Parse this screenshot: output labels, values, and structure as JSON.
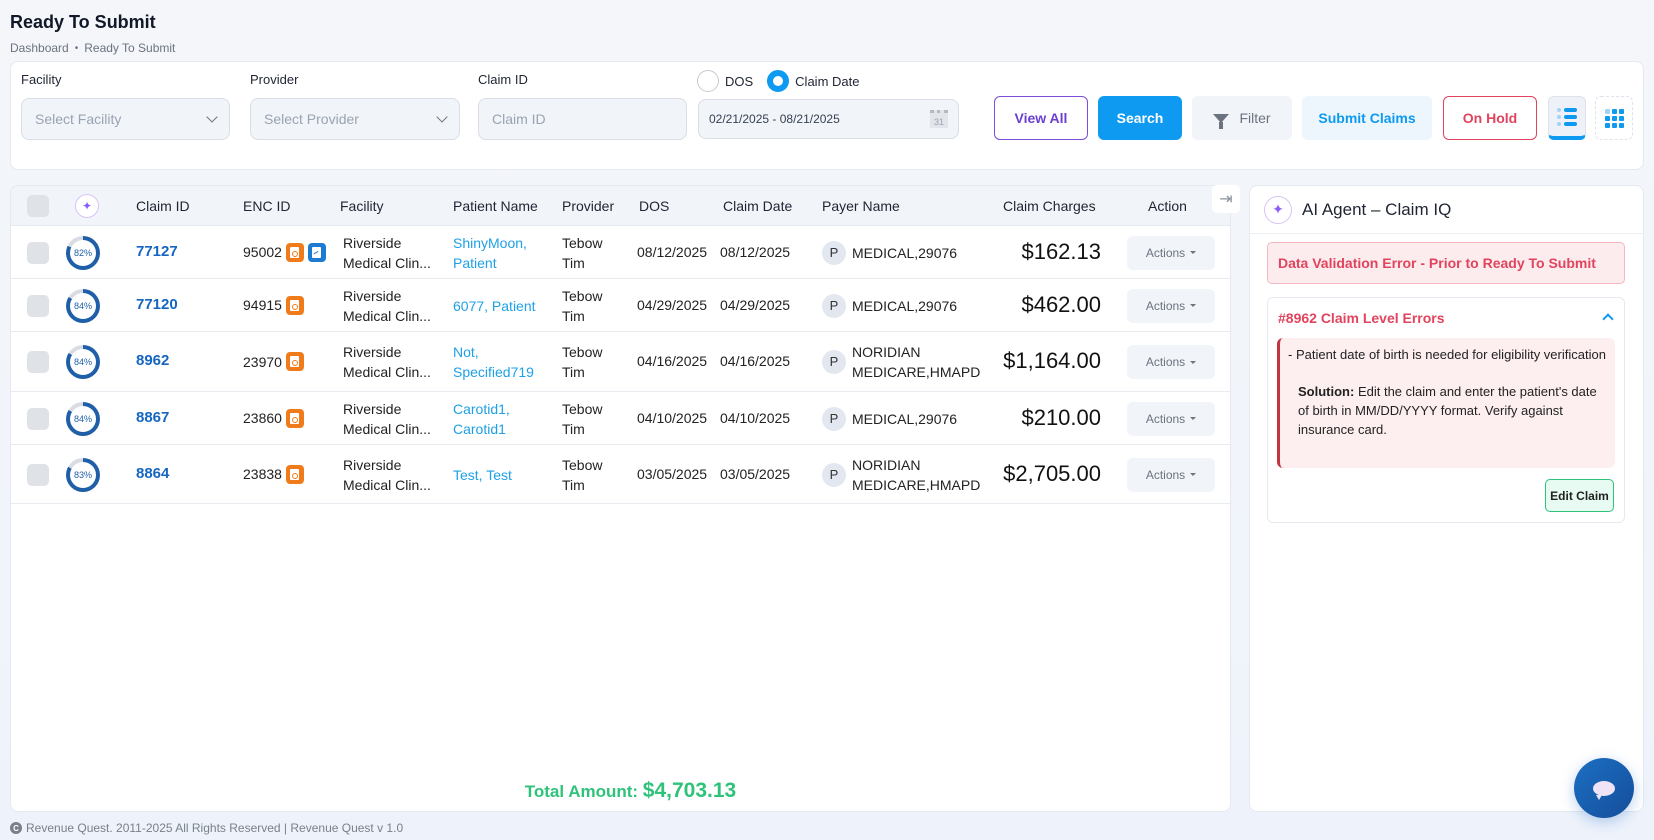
{
  "page": {
    "title": "Ready To Submit",
    "breadcrumb": [
      "Dashboard",
      "Ready To Submit"
    ]
  },
  "filters": {
    "facility": {
      "label": "Facility",
      "placeholder": "Select Facility"
    },
    "provider": {
      "label": "Provider",
      "placeholder": "Select Provider"
    },
    "claim_id": {
      "label": "Claim ID",
      "placeholder": "Claim ID",
      "value": ""
    },
    "date_type": {
      "options": [
        "DOS",
        "Claim Date"
      ],
      "selected": "Claim Date"
    },
    "date_range": "02/21/2025 - 08/21/2025",
    "calendar_day": "31"
  },
  "toolbar": {
    "view_all": "View All",
    "search": "Search",
    "filter": "Filter",
    "submit_claims": "Submit Claims",
    "on_hold": "On Hold",
    "view_modes": [
      "list",
      "grid"
    ],
    "active_view": "list"
  },
  "table": {
    "columns": [
      "Claim ID",
      "ENC ID",
      "Facility",
      "Patient Name",
      "Provider",
      "DOS",
      "Claim Date",
      "Payer Name",
      "Claim Charges",
      "Action"
    ],
    "rows": [
      {
        "score": "82%",
        "score_pct": 82,
        "claim_id": "77127",
        "enc_id": "95002",
        "docs": [
          "orange",
          "blue"
        ],
        "facility_1": "Riverside",
        "facility_2": "Medical Clin...",
        "patient_1": "ShinyMoon,",
        "patient_2": "Patient",
        "provider_1": "Tebow",
        "provider_2": "Tim",
        "dos": "08/12/2025",
        "claim_date": "08/12/2025",
        "payer_initial": "P",
        "payer_1": "MEDICAL,29076",
        "payer_2": "",
        "charges": "$162.13",
        "action": "Actions"
      },
      {
        "score": "84%",
        "score_pct": 84,
        "claim_id": "77120",
        "enc_id": "94915",
        "docs": [
          "orange"
        ],
        "facility_1": "Riverside",
        "facility_2": "Medical Clin...",
        "patient_1": "6077, Patient",
        "patient_2": "",
        "provider_1": "Tebow",
        "provider_2": "Tim",
        "dos": "04/29/2025",
        "claim_date": "04/29/2025",
        "payer_initial": "P",
        "payer_1": "MEDICAL,29076",
        "payer_2": "",
        "charges": "$462.00",
        "action": "Actions"
      },
      {
        "score": "84%",
        "score_pct": 84,
        "claim_id": "8962",
        "enc_id": "23970",
        "docs": [
          "orange"
        ],
        "facility_1": "Riverside",
        "facility_2": "Medical Clin...",
        "patient_1": "Not,",
        "patient_2": "Specified719",
        "provider_1": "Tebow",
        "provider_2": "Tim",
        "dos": "04/16/2025",
        "claim_date": "04/16/2025",
        "payer_initial": "P",
        "payer_1": "NORIDIAN",
        "payer_2": "MEDICARE,HMAPD",
        "charges": "$1,164.00",
        "action": "Actions"
      },
      {
        "score": "84%",
        "score_pct": 84,
        "claim_id": "8867",
        "enc_id": "23860",
        "docs": [
          "orange"
        ],
        "facility_1": "Riverside",
        "facility_2": "Medical Clin...",
        "patient_1": "Carotid1,",
        "patient_2": "Carotid1",
        "provider_1": "Tebow",
        "provider_2": "Tim",
        "dos": "04/10/2025",
        "claim_date": "04/10/2025",
        "payer_initial": "P",
        "payer_1": "MEDICAL,29076",
        "payer_2": "",
        "charges": "$210.00",
        "action": "Actions"
      },
      {
        "score": "83%",
        "score_pct": 83,
        "claim_id": "8864",
        "enc_id": "23838",
        "docs": [
          "orange"
        ],
        "facility_1": "Riverside",
        "facility_2": "Medical Clin...",
        "patient_1": "Test, Test",
        "patient_2": "",
        "provider_1": "Tebow",
        "provider_2": "Tim",
        "dos": "03/05/2025",
        "claim_date": "03/05/2025",
        "payer_initial": "P",
        "payer_1": "NORIDIAN",
        "payer_2": "MEDICARE,HMAPD",
        "charges": "$2,705.00",
        "action": "Actions"
      }
    ],
    "total_label": "Total Amount:",
    "total_value": "$4,703.13"
  },
  "ai_panel": {
    "title": "AI Agent – Claim IQ",
    "banner": "Data Validation Error - Prior to Ready To Submit",
    "card_title": "#8962 Claim Level Errors",
    "error_text": "- Patient date of birth is needed for eligibility verification",
    "solution_label": "Solution:",
    "solution_text": " Edit the claim and enter the patient's date of birth in MM/DD/YYYY format. Verify against insurance card.",
    "edit_button": "Edit Claim"
  },
  "footer": {
    "text": "Revenue Quest. 2011-2025 All Rights Reserved | Revenue Quest v 1.0"
  },
  "colors": {
    "primary": "#0d9af0",
    "danger": "#e0445e",
    "success": "#2fc27a",
    "link": "#1566c0",
    "patient_link": "#1ea0e6",
    "progress": "#1e5fa8"
  }
}
